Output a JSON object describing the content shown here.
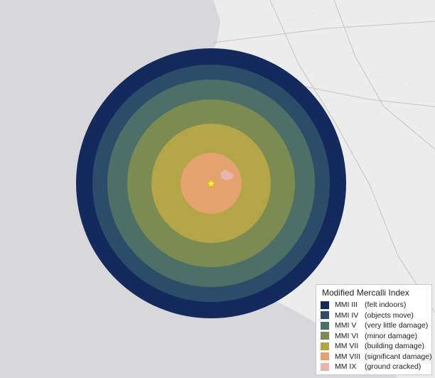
{
  "legend": {
    "title": "Modified Mercalli Index",
    "items": [
      {
        "level": "MMI III",
        "desc": "(felt indoors)",
        "color": "#142a5c"
      },
      {
        "level": "MMI IV",
        "desc": "(objects move)",
        "color": "#2c4d6a"
      },
      {
        "level": "MMI V",
        "desc": "(very little damage)",
        "color": "#4c7068"
      },
      {
        "level": "MMI VI",
        "desc": "(minor damage)",
        "color": "#7c8b52"
      },
      {
        "level": "MM VII",
        "desc": "(building damage)",
        "color": "#b3a548"
      },
      {
        "level": "MM VIII",
        "desc": "(significant damage)",
        "color": "#e4a26e"
      },
      {
        "level": "MM IX",
        "desc": "(ground cracked)",
        "color": "#e8b4b0"
      }
    ]
  },
  "colors": {
    "ocean": "#d7d7dc",
    "land": "#ececec",
    "epicenter": "#ffee33"
  },
  "map": {
    "epicenter_icon": "star-icon"
  }
}
